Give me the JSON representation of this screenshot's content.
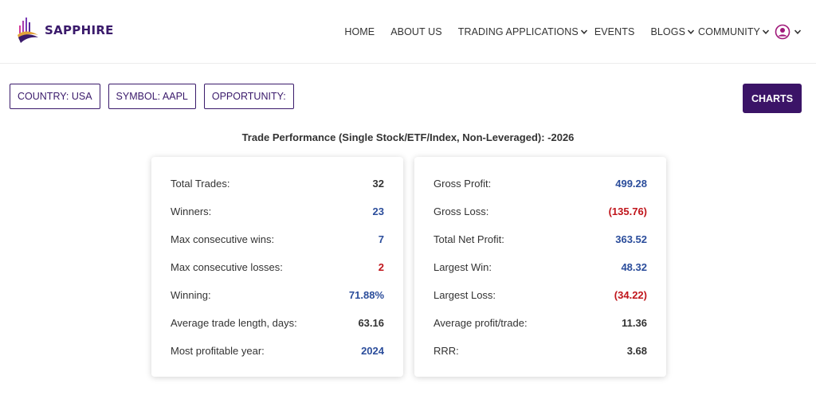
{
  "brand": {
    "name": "SAPPHIRE"
  },
  "nav": {
    "items": [
      {
        "label": "HOME",
        "dropdown": false
      },
      {
        "label": "ABOUT US",
        "dropdown": false
      },
      {
        "label": "TRADING APPLICATIONS",
        "dropdown": true
      },
      {
        "label": "EVENTS",
        "dropdown": false
      },
      {
        "label": "BLOGS",
        "dropdown": true
      },
      {
        "label": "COMMUNITY",
        "dropdown": true
      }
    ]
  },
  "filters": {
    "country": "COUNTRY: USA",
    "symbol": "SYMBOL: AAPL",
    "opportunity": "OPPORTUNITY:"
  },
  "charts_label": "CHARTS",
  "title": "Trade Performance (Single Stock/ETF/Index, Non-Leveraged): -2026",
  "colors": {
    "brand": "#3b1467",
    "positive": "#2b4d9b",
    "negative": "#c0151b",
    "neutral": "#333333"
  },
  "left_stats": [
    {
      "label": "Total Trades:",
      "value": "32",
      "tone": "dark"
    },
    {
      "label": "Winners:",
      "value": "23",
      "tone": "blue"
    },
    {
      "label": "Max consecutive wins:",
      "value": "7",
      "tone": "blue"
    },
    {
      "label": "Max consecutive losses:",
      "value": "2",
      "tone": "red"
    },
    {
      "label": "Winning:",
      "value": "71.88%",
      "tone": "blue"
    },
    {
      "label": "Average trade length, days:",
      "value": "63.16",
      "tone": "dark"
    },
    {
      "label": "Most profitable year:",
      "value": "2024",
      "tone": "blue"
    }
  ],
  "right_stats": [
    {
      "label": "Gross Profit:",
      "value": "499.28",
      "tone": "blue"
    },
    {
      "label": "Gross Loss:",
      "value": "(135.76)",
      "tone": "red"
    },
    {
      "label": "Total Net Profit:",
      "value": "363.52",
      "tone": "blue"
    },
    {
      "label": "Largest Win:",
      "value": "48.32",
      "tone": "blue"
    },
    {
      "label": "Largest Loss:",
      "value": "(34.22)",
      "tone": "red"
    },
    {
      "label": "Average profit/trade:",
      "value": "11.36",
      "tone": "dark"
    },
    {
      "label": "RRR:",
      "value": "3.68",
      "tone": "dark"
    }
  ]
}
